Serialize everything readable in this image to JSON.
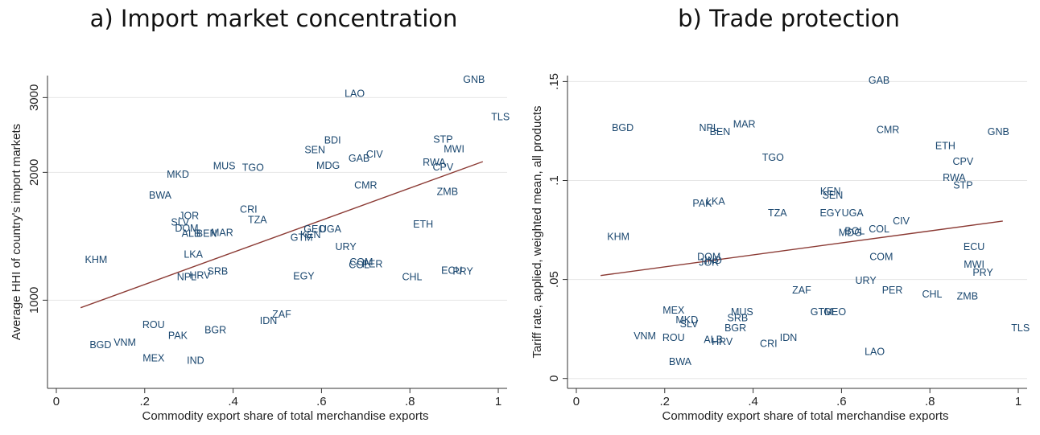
{
  "chart_data": [
    {
      "type": "scatter",
      "panel_title": "a) Import market concentration",
      "xlabel": "Commodity export share of total merchandise exports",
      "ylabel": "Average HHI of country's import markets",
      "yscale": "log",
      "xlim": [
        -0.02,
        1.02
      ],
      "ylim": [
        620,
        3380
      ],
      "x_ticks": [
        0,
        0.2,
        0.4,
        0.6,
        0.8,
        1
      ],
      "x_tick_labels": [
        "0",
        ".2",
        ".4",
        ".6",
        ".8",
        "1"
      ],
      "y_ticks": [
        1000,
        2000,
        3000
      ],
      "y_tick_labels": [
        "1000",
        "2000",
        "3000"
      ],
      "fit_line": {
        "x": [
          0.055,
          0.965
        ],
        "y": [
          960,
          2120
        ]
      },
      "points": [
        {
          "label": "GNB",
          "x": 0.945,
          "y": 3310
        },
        {
          "label": "LAO",
          "x": 0.675,
          "y": 3065
        },
        {
          "label": "TLS",
          "x": 1.005,
          "y": 2700
        },
        {
          "label": "STP",
          "x": 0.875,
          "y": 2390
        },
        {
          "label": "BDI",
          "x": 0.625,
          "y": 2380
        },
        {
          "label": "MWI",
          "x": 0.9,
          "y": 2270
        },
        {
          "label": "SEN",
          "x": 0.585,
          "y": 2260
        },
        {
          "label": "CIV",
          "x": 0.72,
          "y": 2205
        },
        {
          "label": "GAB",
          "x": 0.685,
          "y": 2155
        },
        {
          "label": "RWA",
          "x": 0.855,
          "y": 2110
        },
        {
          "label": "MUS",
          "x": 0.38,
          "y": 2070
        },
        {
          "label": "TGO",
          "x": 0.445,
          "y": 2050
        },
        {
          "label": "MDG",
          "x": 0.615,
          "y": 2075
        },
        {
          "label": "CPV",
          "x": 0.875,
          "y": 2055
        },
        {
          "label": "MKD",
          "x": 0.275,
          "y": 1975
        },
        {
          "label": "CMR",
          "x": 0.7,
          "y": 1865
        },
        {
          "label": "ZMB",
          "x": 0.885,
          "y": 1800
        },
        {
          "label": "BWA",
          "x": 0.235,
          "y": 1765
        },
        {
          "label": "CRI",
          "x": 0.435,
          "y": 1635
        },
        {
          "label": "JOR",
          "x": 0.3,
          "y": 1580
        },
        {
          "label": "TZA",
          "x": 0.455,
          "y": 1545
        },
        {
          "label": "SLV",
          "x": 0.28,
          "y": 1525
        },
        {
          "label": "ETH",
          "x": 0.83,
          "y": 1510
        },
        {
          "label": "DOM",
          "x": 0.295,
          "y": 1475
        },
        {
          "label": "GEO",
          "x": 0.585,
          "y": 1470
        },
        {
          "label": "UGA",
          "x": 0.62,
          "y": 1470
        },
        {
          "label": "ALB",
          "x": 0.305,
          "y": 1435
        },
        {
          "label": "BEN",
          "x": 0.34,
          "y": 1435
        },
        {
          "label": "MAR",
          "x": 0.375,
          "y": 1440
        },
        {
          "label": "KEN",
          "x": 0.575,
          "y": 1425
        },
        {
          "label": "GTM",
          "x": 0.555,
          "y": 1405
        },
        {
          "label": "URY",
          "x": 0.655,
          "y": 1335
        },
        {
          "label": "LKA",
          "x": 0.31,
          "y": 1280
        },
        {
          "label": "KHM",
          "x": 0.09,
          "y": 1245
        },
        {
          "label": "COM",
          "x": 0.69,
          "y": 1230
        },
        {
          "label": "COL",
          "x": 0.685,
          "y": 1210
        },
        {
          "label": "PER",
          "x": 0.715,
          "y": 1215
        },
        {
          "label": "SRB",
          "x": 0.365,
          "y": 1170
        },
        {
          "label": "ECU",
          "x": 0.895,
          "y": 1175
        },
        {
          "label": "PRY",
          "x": 0.92,
          "y": 1170
        },
        {
          "label": "HRV",
          "x": 0.325,
          "y": 1145
        },
        {
          "label": "NPL",
          "x": 0.295,
          "y": 1135
        },
        {
          "label": "EGY",
          "x": 0.56,
          "y": 1140
        },
        {
          "label": "CHL",
          "x": 0.805,
          "y": 1135
        },
        {
          "label": "ZAF",
          "x": 0.51,
          "y": 925
        },
        {
          "label": "IDN",
          "x": 0.48,
          "y": 895
        },
        {
          "label": "ROU",
          "x": 0.22,
          "y": 875
        },
        {
          "label": "BGR",
          "x": 0.36,
          "y": 850
        },
        {
          "label": "PAK",
          "x": 0.275,
          "y": 825
        },
        {
          "label": "VNM",
          "x": 0.155,
          "y": 795
        },
        {
          "label": "BGD",
          "x": 0.1,
          "y": 785
        },
        {
          "label": "MEX",
          "x": 0.22,
          "y": 730
        },
        {
          "label": "IND",
          "x": 0.315,
          "y": 720
        }
      ]
    },
    {
      "type": "scatter",
      "panel_title": "b) Trade protection",
      "xlabel": "Commodity export share of total merchandise exports",
      "ylabel": "Tariff rate, applied, weighted mean, all products",
      "yscale": "linear",
      "xlim": [
        -0.02,
        1.02
      ],
      "ylim": [
        -0.005,
        0.153
      ],
      "x_ticks": [
        0,
        0.2,
        0.4,
        0.6,
        0.8,
        1
      ],
      "x_tick_labels": [
        "0",
        ".2",
        ".4",
        ".6",
        ".8",
        "1"
      ],
      "y_ticks": [
        0,
        0.05,
        0.1,
        0.15
      ],
      "y_tick_labels": [
        "0",
        ".05",
        ".1",
        ".15"
      ],
      "fit_line": {
        "x": [
          0.055,
          0.965
        ],
        "y": [
          0.052,
          0.0795
        ]
      },
      "points": [
        {
          "label": "GAB",
          "x": 0.685,
          "y": 0.1505
        },
        {
          "label": "MAR",
          "x": 0.38,
          "y": 0.1285
        },
        {
          "label": "BGD",
          "x": 0.105,
          "y": 0.1265
        },
        {
          "label": "NPL",
          "x": 0.3,
          "y": 0.1265
        },
        {
          "label": "BEN",
          "x": 0.325,
          "y": 0.1245
        },
        {
          "label": "CMR",
          "x": 0.705,
          "y": 0.1255
        },
        {
          "label": "GNB",
          "x": 0.955,
          "y": 0.1245
        },
        {
          "label": "ETH",
          "x": 0.835,
          "y": 0.1175
        },
        {
          "label": "TGO",
          "x": 0.445,
          "y": 0.1115
        },
        {
          "label": "CPV",
          "x": 0.875,
          "y": 0.1095
        },
        {
          "label": "RWA",
          "x": 0.855,
          "y": 0.1015
        },
        {
          "label": "STP",
          "x": 0.875,
          "y": 0.0975
        },
        {
          "label": "KEN",
          "x": 0.575,
          "y": 0.0945
        },
        {
          "label": "SEN",
          "x": 0.58,
          "y": 0.0925
        },
        {
          "label": "LKA",
          "x": 0.315,
          "y": 0.0895
        },
        {
          "label": "PAK",
          "x": 0.285,
          "y": 0.0885
        },
        {
          "label": "TZA",
          "x": 0.455,
          "y": 0.0835
        },
        {
          "label": "EGY",
          "x": 0.575,
          "y": 0.0835
        },
        {
          "label": "UGA",
          "x": 0.625,
          "y": 0.0835
        },
        {
          "label": "CIV",
          "x": 0.735,
          "y": 0.0795
        },
        {
          "label": "COL",
          "x": 0.685,
          "y": 0.0755
        },
        {
          "label": "BOL",
          "x": 0.63,
          "y": 0.0745
        },
        {
          "label": "MDG",
          "x": 0.62,
          "y": 0.0735
        },
        {
          "label": "KHM",
          "x": 0.095,
          "y": 0.0715
        },
        {
          "label": "ECU",
          "x": 0.9,
          "y": 0.0665
        },
        {
          "label": "COM",
          "x": 0.69,
          "y": 0.0615
        },
        {
          "label": "DOM",
          "x": 0.3,
          "y": 0.0615
        },
        {
          "label": "IND",
          "x": 0.31,
          "y": 0.0595
        },
        {
          "label": "JOR",
          "x": 0.3,
          "y": 0.0585
        },
        {
          "label": "MWI",
          "x": 0.9,
          "y": 0.0575
        },
        {
          "label": "PRY",
          "x": 0.92,
          "y": 0.0535
        },
        {
          "label": "URY",
          "x": 0.655,
          "y": 0.0495
        },
        {
          "label": "ZAF",
          "x": 0.51,
          "y": 0.0445
        },
        {
          "label": "PER",
          "x": 0.715,
          "y": 0.0445
        },
        {
          "label": "CHL",
          "x": 0.805,
          "y": 0.0425
        },
        {
          "label": "ZMB",
          "x": 0.885,
          "y": 0.0415
        },
        {
          "label": "MEX",
          "x": 0.22,
          "y": 0.0345
        },
        {
          "label": "MUS",
          "x": 0.375,
          "y": 0.0335
        },
        {
          "label": "GTM",
          "x": 0.555,
          "y": 0.0335
        },
        {
          "label": "GEO",
          "x": 0.585,
          "y": 0.0335
        },
        {
          "label": "SRB",
          "x": 0.365,
          "y": 0.0305
        },
        {
          "label": "MKD",
          "x": 0.25,
          "y": 0.0295
        },
        {
          "label": "SLV",
          "x": 0.255,
          "y": 0.0275
        },
        {
          "label": "BGR",
          "x": 0.36,
          "y": 0.0255
        },
        {
          "label": "VNM",
          "x": 0.155,
          "y": 0.0215
        },
        {
          "label": "ROU",
          "x": 0.22,
          "y": 0.0205
        },
        {
          "label": "ALB",
          "x": 0.31,
          "y": 0.0195
        },
        {
          "label": "IDN",
          "x": 0.48,
          "y": 0.0205
        },
        {
          "label": "HRV",
          "x": 0.33,
          "y": 0.0185
        },
        {
          "label": "CRI",
          "x": 0.435,
          "y": 0.0175
        },
        {
          "label": "LAO",
          "x": 0.675,
          "y": 0.0135
        },
        {
          "label": "TLS",
          "x": 1.005,
          "y": 0.0255
        },
        {
          "label": "BWA",
          "x": 0.235,
          "y": 0.0085
        }
      ]
    }
  ]
}
